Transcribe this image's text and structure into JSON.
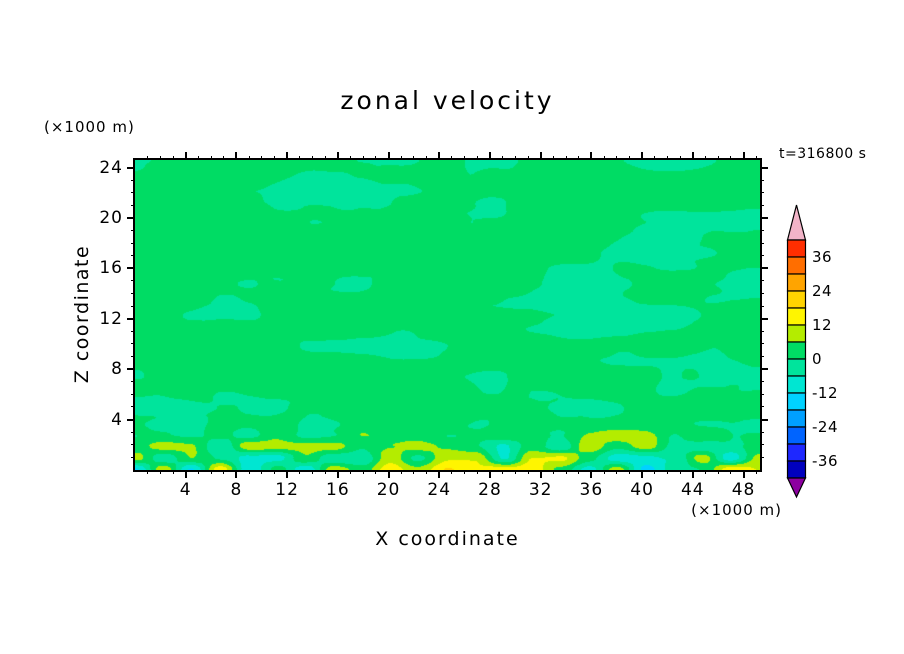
{
  "title": "zonal velocity",
  "timestamp": "t=316800 s",
  "axes": {
    "x": {
      "label": "X coordinate",
      "unit": "(×1000 m)",
      "ticks": [
        4,
        8,
        12,
        16,
        20,
        24,
        28,
        32,
        36,
        40,
        44,
        48
      ]
    },
    "z": {
      "label": "Z coordinate",
      "unit": "(×1000 m)",
      "ticks": [
        4,
        8,
        12,
        16,
        20,
        24
      ]
    }
  },
  "colorbar": {
    "labels": [
      "36",
      "24",
      "12",
      "0",
      "-12",
      "-24",
      "-36"
    ]
  },
  "chart_data": {
    "type": "heatmap",
    "subtype": "filled-contour",
    "title": "zonal velocity",
    "xlabel": "X coordinate (×1000 m)",
    "ylabel": "Z coordinate (×1000 m)",
    "time_label": "t=316800 s",
    "x_range": [
      0,
      49.3
    ],
    "z_range": [
      0,
      24.6
    ],
    "x_ticks": [
      4,
      8,
      12,
      16,
      20,
      24,
      28,
      32,
      36,
      40,
      44,
      48
    ],
    "z_ticks": [
      4,
      8,
      12,
      16,
      20,
      24
    ],
    "contour_interval": 6,
    "levels": [
      42,
      36,
      30,
      24,
      18,
      12,
      6,
      0,
      -6,
      -12,
      -18,
      -24,
      -30,
      -36,
      -42
    ],
    "colorbar_tick_labels": [
      "36",
      "24",
      "12",
      "0",
      "-12",
      "-24",
      "-36"
    ],
    "colorbar_colors": [
      "#ff2e00",
      "#ff6e00",
      "#ffa400",
      "#ffd300",
      "#fff500",
      "#b4ec00",
      "#00dc64",
      "#00e49c",
      "#00e6d2",
      "#00d2ff",
      "#00a0ff",
      "#0064ff",
      "#1e28ff",
      "#0000be"
    ],
    "colorbar_over_color": "#f2b4c8",
    "colorbar_under_color": "#8c00a0",
    "field_summary": "Zonal velocity is near zero over almost the whole section: alternating streaky horizontal blobs of the 0 to 6 band (green) and the -6 to 0 band (spring green), with a few small patches reaching the 6 to 18 bands (yellow-green/yellow) and the -6 to -18 bands (turquoise/cyan) near the bottom boundary.",
    "grid": false,
    "legend_position": "right-colorbar"
  }
}
